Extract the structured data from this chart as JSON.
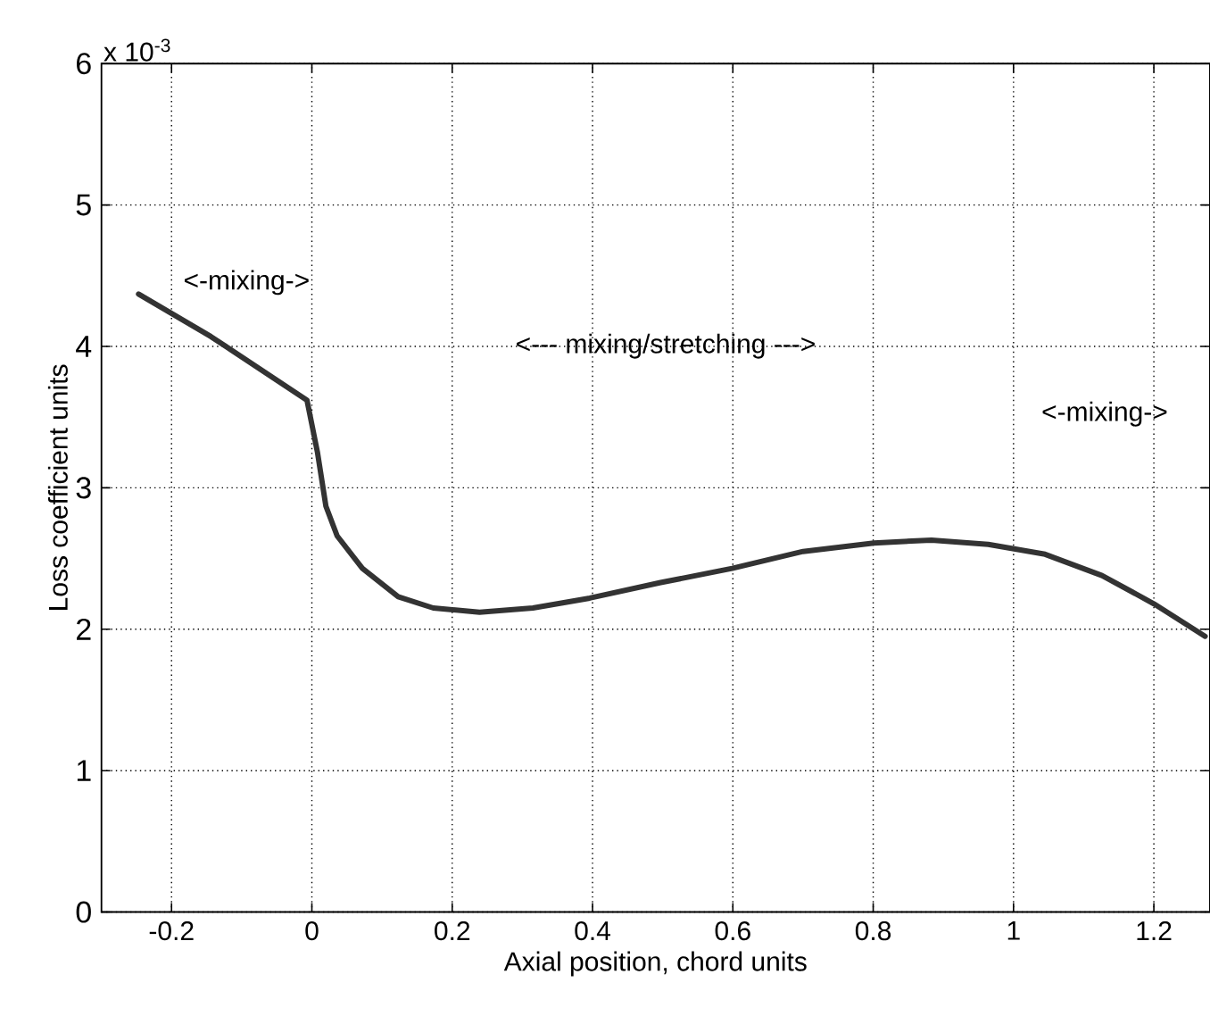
{
  "chart_data": {
    "type": "line",
    "xlabel": "Axial position, chord units",
    "ylabel": "Loss coefficient units",
    "series": [
      {
        "color": "#333333",
        "x": [
          -0.247,
          -0.144,
          -0.007,
          0.008,
          0.02,
          0.036,
          0.072,
          0.123,
          0.173,
          0.239,
          0.315,
          0.396,
          0.497,
          0.599,
          0.7,
          0.801,
          0.883,
          0.964,
          1.045,
          1.126,
          1.2,
          1.273
        ],
        "values": [
          4.37,
          4.07,
          3.62,
          3.25,
          2.87,
          2.66,
          2.43,
          2.23,
          2.15,
          2.12,
          2.15,
          2.22,
          2.33,
          2.43,
          2.55,
          2.61,
          2.63,
          2.6,
          2.53,
          2.38,
          2.18,
          1.95
        ]
      }
    ],
    "xlim": [
      -0.3,
      1.28
    ],
    "ylim": [
      0,
      6
    ],
    "xticks": [
      -0.2,
      0,
      0.2,
      0.4,
      0.6,
      0.8,
      1,
      1.2
    ],
    "yticks": [
      0,
      1,
      2,
      3,
      4,
      5,
      6
    ],
    "grid": true,
    "marker": "none",
    "line_style": "solid",
    "annotations": [
      "x 10$^{-3}$",
      "<-mixing->",
      "<--- mixing/stretching --->",
      "<-mixing->"
    ]
  }
}
